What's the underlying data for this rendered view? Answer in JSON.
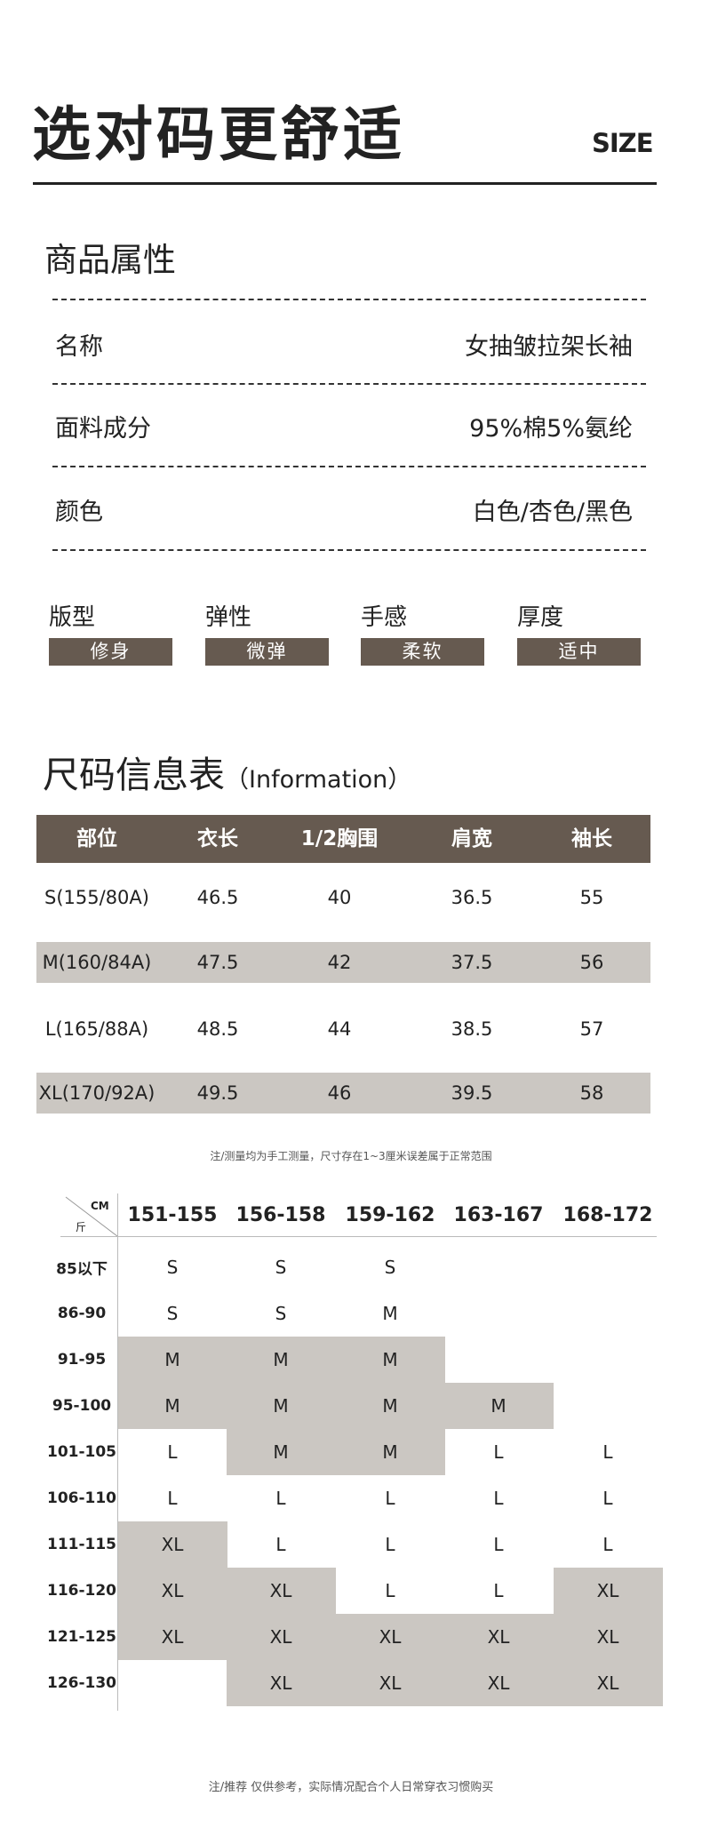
{
  "header": {
    "title": "选对码更舒适",
    "size_label": "SIZE"
  },
  "attributes": {
    "title": "商品属性",
    "rows": [
      {
        "label": "名称",
        "value": "女抽皱拉架长袖"
      },
      {
        "label": "面料成分",
        "value": "95%棉5%氨纶"
      },
      {
        "label": "颜色",
        "value": "白色/杏色/黑色"
      }
    ]
  },
  "features": [
    {
      "label": "版型",
      "value": "修身"
    },
    {
      "label": "弹性",
      "value": "微弹"
    },
    {
      "label": "手感",
      "value": "柔软"
    },
    {
      "label": "厚度",
      "value": "适中"
    }
  ],
  "size_table": {
    "title": "尺码信息表",
    "subtitle": "（Information）",
    "headers": [
      "部位",
      "衣长",
      "1/2胸围",
      "肩宽",
      "袖长"
    ],
    "rows": [
      [
        "S(155/80A)",
        "46.5",
        "40",
        "36.5",
        "55"
      ],
      [
        "M(160/84A)",
        "47.5",
        "42",
        "37.5",
        "56"
      ],
      [
        "L(165/88A)",
        "48.5",
        "44",
        "38.5",
        "57"
      ],
      [
        "XL(170/92A)",
        "49.5",
        "46",
        "39.5",
        "58"
      ]
    ],
    "note": "注/测量均为手工测量，尺寸存在1~3厘米误差属于正常范围"
  },
  "recommend": {
    "corner_top": "CM",
    "corner_bottom": "斤",
    "heights": [
      "151-155",
      "156-158",
      "159-162",
      "163-167",
      "168-172"
    ],
    "rows": [
      {
        "weight": "85以下",
        "sizes": [
          "S",
          "S",
          "S",
          "",
          ""
        ],
        "shaded": [
          0,
          0,
          0,
          0,
          0
        ]
      },
      {
        "weight": "86-90",
        "sizes": [
          "S",
          "S",
          "M",
          "",
          ""
        ],
        "shaded": [
          0,
          0,
          0,
          0,
          0
        ]
      },
      {
        "weight": "91-95",
        "sizes": [
          "M",
          "M",
          "M",
          "",
          ""
        ],
        "shaded": [
          1,
          1,
          1,
          0,
          0
        ]
      },
      {
        "weight": "95-100",
        "sizes": [
          "M",
          "M",
          "M",
          "M",
          ""
        ],
        "shaded": [
          1,
          1,
          1,
          1,
          0
        ]
      },
      {
        "weight": "101-105",
        "sizes": [
          "L",
          "M",
          "M",
          "L",
          "L"
        ],
        "shaded": [
          0,
          1,
          1,
          0,
          0
        ]
      },
      {
        "weight": "106-110",
        "sizes": [
          "L",
          "L",
          "L",
          "L",
          "L"
        ],
        "shaded": [
          0,
          0,
          0,
          0,
          0
        ]
      },
      {
        "weight": "111-115",
        "sizes": [
          "XL",
          "L",
          "L",
          "L",
          "L"
        ],
        "shaded": [
          1,
          0,
          0,
          0,
          0
        ]
      },
      {
        "weight": "116-120",
        "sizes": [
          "XL",
          "XL",
          "L",
          "L",
          "XL"
        ],
        "shaded": [
          1,
          1,
          0,
          0,
          1
        ]
      },
      {
        "weight": "121-125",
        "sizes": [
          "XL",
          "XL",
          "XL",
          "XL",
          "XL"
        ],
        "shaded": [
          1,
          1,
          1,
          1,
          1
        ]
      },
      {
        "weight": "126-130",
        "sizes": [
          "",
          "XL",
          "XL",
          "XL",
          "XL"
        ],
        "shaded": [
          0,
          1,
          1,
          1,
          1
        ]
      }
    ],
    "note": "注/推荐 仅供参考，实际情况配合个人日常穿衣习惯购买"
  },
  "colors": {
    "header_brown": "#665a50",
    "band_gray": "#cbc7c2"
  }
}
